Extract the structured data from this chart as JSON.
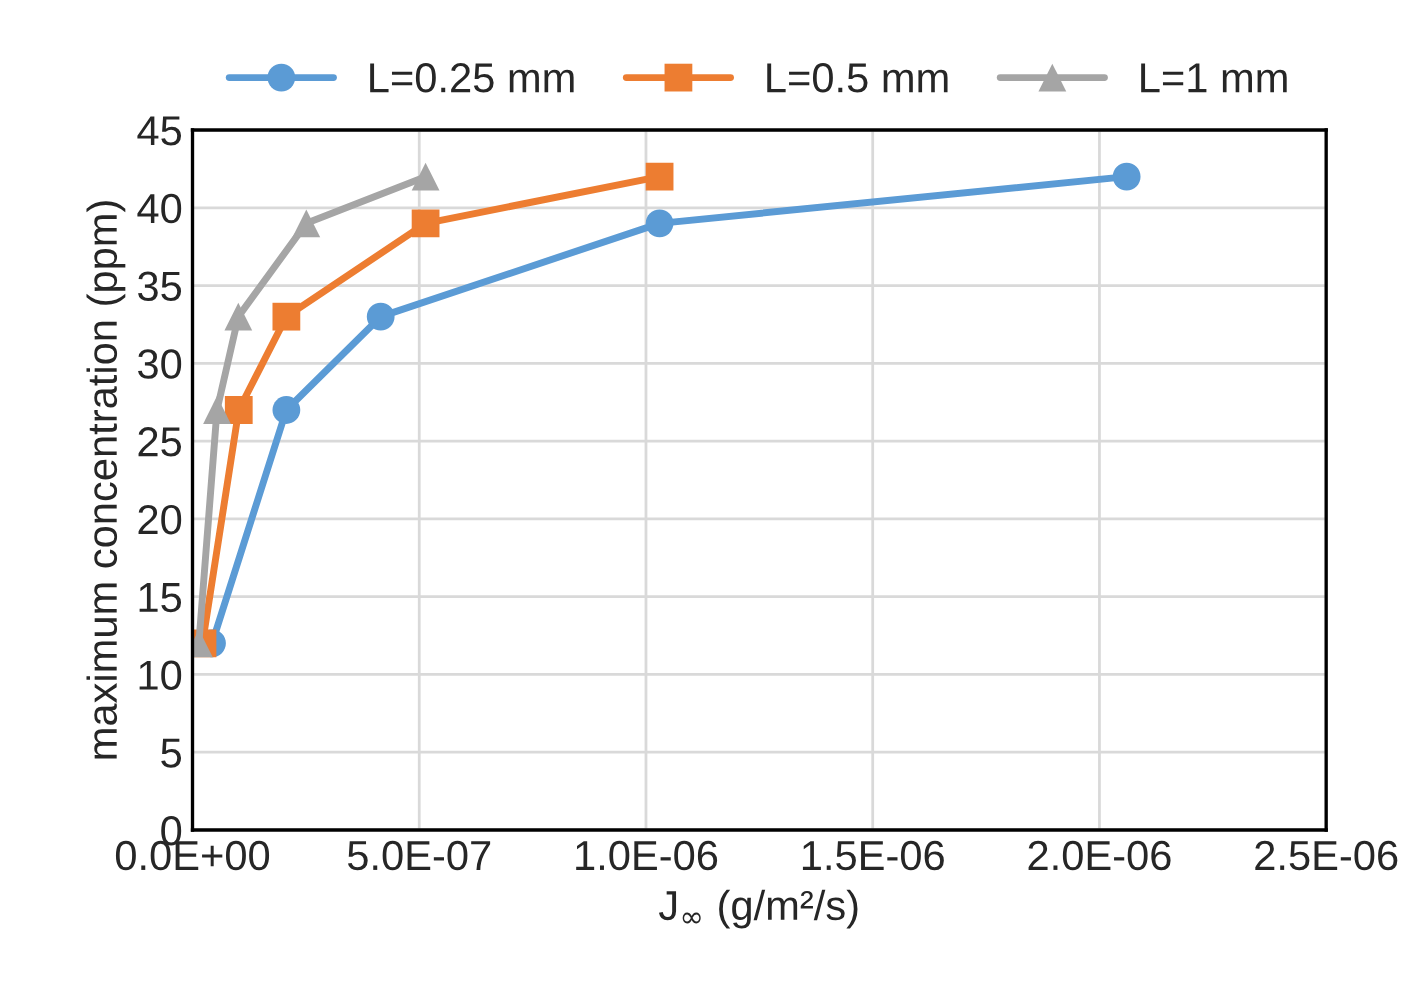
{
  "chart_data": {
    "type": "line",
    "xlabel": "J$_{∞}$ (g/m²/s)",
    "ylabel": "maximum concentration (ppm)",
    "xlim": [
      0,
      2.5e-06
    ],
    "xticks": [
      {
        "value": 0,
        "label": "0.0E+00"
      },
      {
        "value": 5e-07,
        "label": "5.0E-07"
      },
      {
        "value": 1e-06,
        "label": "1.0E-06"
      },
      {
        "value": 1.5e-06,
        "label": "1.5E-06"
      },
      {
        "value": 2e-06,
        "label": "2.0E-06"
      },
      {
        "value": 2.5e-06,
        "label": "2.5E-06"
      }
    ],
    "ylim": [
      0,
      45
    ],
    "yticks": [
      0,
      5,
      10,
      15,
      20,
      25,
      30,
      35,
      40,
      45
    ],
    "grid": true,
    "legend": "top",
    "line_style": "solid",
    "series": [
      {
        "name": "L=0.25 mm",
        "color": "#5b9bd5",
        "marker": "circle",
        "x": [
          4.3e-08,
          2.07e-07,
          4.15e-07,
          1.03e-06,
          2.06e-06
        ],
        "values": [
          12,
          27,
          33,
          39,
          42
        ]
      },
      {
        "name": "L=0.5 mm",
        "color": "#ed7d31",
        "marker": "square",
        "x": [
          2.2e-08,
          1.02e-07,
          2.07e-07,
          5.14e-07,
          1.03e-06
        ],
        "values": [
          12,
          27,
          33,
          39,
          42
        ]
      },
      {
        "name": "L=1 mm",
        "color": "#a5a5a5",
        "marker": "triangle",
        "x": [
          1.4e-08,
          5.4e-08,
          1.01e-07,
          2.51e-07,
          5.14e-07
        ],
        "values": [
          12,
          27,
          33,
          39,
          42
        ]
      }
    ]
  }
}
